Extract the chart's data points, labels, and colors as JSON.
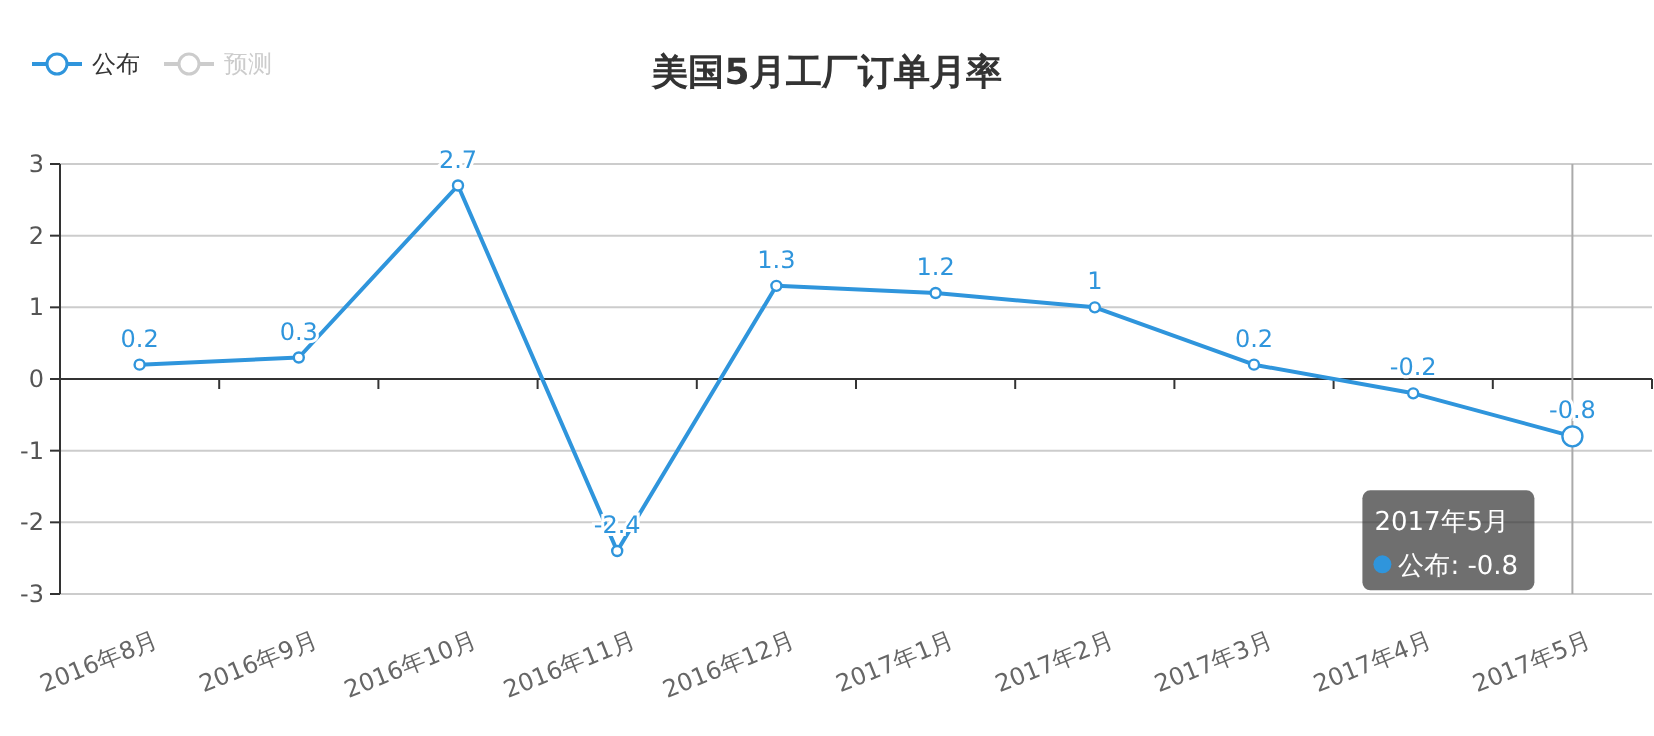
{
  "chart_data": {
    "type": "line",
    "title": "美国5月工厂订单月率",
    "categories": [
      "2016年8月",
      "2016年9月",
      "2016年10月",
      "2016年11月",
      "2016年12月",
      "2017年1月",
      "2017年2月",
      "2017年3月",
      "2017年4月",
      "2017年5月"
    ],
    "series": [
      {
        "name": "公布",
        "color": "#2f95dc",
        "values": [
          0.2,
          0.3,
          2.7,
          -2.4,
          1.3,
          1.2,
          1,
          0.2,
          -0.2,
          -0.8
        ]
      },
      {
        "name": "预测",
        "color": "#cccccc",
        "values": [
          null,
          null,
          null,
          null,
          null,
          null,
          null,
          null,
          null,
          null
        ]
      }
    ],
    "ylim": [
      -3,
      3
    ],
    "yticks": [
      -3,
      -2,
      -1,
      0,
      1,
      2,
      3
    ],
    "grid": "y",
    "legend": "top left",
    "marker": "circle",
    "line_style": "solid",
    "data_labels": true,
    "ref_lines": [
      {
        "axis": "x",
        "value": "2017年5月",
        "color": "#aaaaaa"
      }
    ],
    "annotations": [
      "2017年5月",
      "公布: -0.8"
    ]
  }
}
